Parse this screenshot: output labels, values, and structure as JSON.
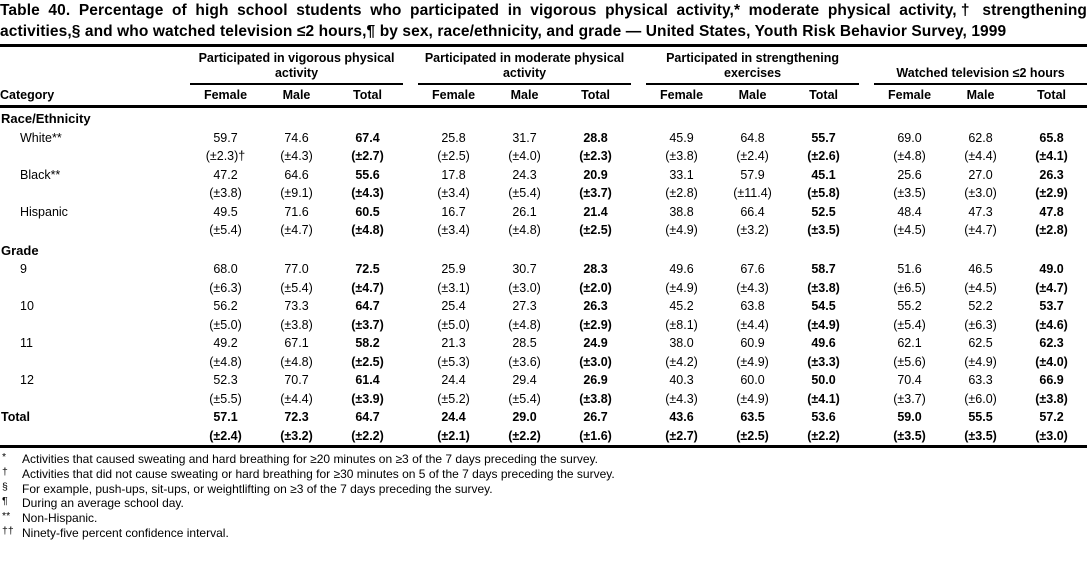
{
  "title": "Table 40. Percentage of high school students who participated in vigorous physical activity,* moderate physical activity,† strengthening activities,§ and who watched television ≤2 hours,¶ by sex, race/ethnicity, and grade — United States, Youth Risk Behavior Survey, 1999",
  "table": {
    "category_header": "Category",
    "groups": [
      {
        "label": "Participated in vigorous physical activity",
        "cols": [
          "Female",
          "Male",
          "Total"
        ]
      },
      {
        "label": "Participated in moderate physical activity",
        "cols": [
          "Female",
          "Male",
          "Total"
        ]
      },
      {
        "label": "Participated in strengthening exercises",
        "cols": [
          "Female",
          "Male",
          "Total"
        ]
      },
      {
        "label": "Watched television ≤2 hours",
        "cols": [
          "Female",
          "Male",
          "Total"
        ]
      }
    ],
    "sections": [
      {
        "heading": "Race/Ethnicity",
        "rows": [
          {
            "label": "White**",
            "values": [
              "59.7",
              "74.6",
              "67.4",
              "25.8",
              "31.7",
              "28.8",
              "45.9",
              "64.8",
              "55.7",
              "69.0",
              "62.8",
              "65.8"
            ],
            "ci": [
              "(±2.3)†",
              "(±4.3)",
              "(±2.7)",
              "(±2.5)",
              "(±4.0)",
              "(±2.3)",
              "(±3.8)",
              "(±2.4)",
              "(±2.6)",
              "(±4.8)",
              "(±4.4)",
              "(±4.1)"
            ]
          },
          {
            "label": "Black**",
            "values": [
              "47.2",
              "64.6",
              "55.6",
              "17.8",
              "24.3",
              "20.9",
              "33.1",
              "57.9",
              "45.1",
              "25.6",
              "27.0",
              "26.3"
            ],
            "ci": [
              "(±3.8)",
              "(±9.1)",
              "(±4.3)",
              "(±3.4)",
              "(±5.4)",
              "(±3.7)",
              "(±2.8)",
              "(±11.4)",
              "(±5.8)",
              "(±3.5)",
              "(±3.0)",
              "(±2.9)"
            ]
          },
          {
            "label": "Hispanic",
            "values": [
              "49.5",
              "71.6",
              "60.5",
              "16.7",
              "26.1",
              "21.4",
              "38.8",
              "66.4",
              "52.5",
              "48.4",
              "47.3",
              "47.8"
            ],
            "ci": [
              "(±5.4)",
              "(±4.7)",
              "(±4.8)",
              "(±3.4)",
              "(±4.8)",
              "(±2.5)",
              "(±4.9)",
              "(±3.2)",
              "(±3.5)",
              "(±4.5)",
              "(±4.7)",
              "(±2.8)"
            ]
          }
        ]
      },
      {
        "heading": "Grade",
        "rows": [
          {
            "label": "9",
            "values": [
              "68.0",
              "77.0",
              "72.5",
              "25.9",
              "30.7",
              "28.3",
              "49.6",
              "67.6",
              "58.7",
              "51.6",
              "46.5",
              "49.0"
            ],
            "ci": [
              "(±6.3)",
              "(±5.4)",
              "(±4.7)",
              "(±3.1)",
              "(±3.0)",
              "(±2.0)",
              "(±4.9)",
              "(±4.3)",
              "(±3.8)",
              "(±6.5)",
              "(±4.5)",
              "(±4.7)"
            ]
          },
          {
            "label": "10",
            "values": [
              "56.2",
              "73.3",
              "64.7",
              "25.4",
              "27.3",
              "26.3",
              "45.2",
              "63.8",
              "54.5",
              "55.2",
              "52.2",
              "53.7"
            ],
            "ci": [
              "(±5.0)",
              "(±3.8)",
              "(±3.7)",
              "(±5.0)",
              "(±4.8)",
              "(±2.9)",
              "(±8.1)",
              "(±4.4)",
              "(±4.9)",
              "(±5.4)",
              "(±6.3)",
              "(±4.6)"
            ]
          },
          {
            "label": "11",
            "values": [
              "49.2",
              "67.1",
              "58.2",
              "21.3",
              "28.5",
              "24.9",
              "38.0",
              "60.9",
              "49.6",
              "62.1",
              "62.5",
              "62.3"
            ],
            "ci": [
              "(±4.8)",
              "(±4.8)",
              "(±2.5)",
              "(±5.3)",
              "(±3.6)",
              "(±3.0)",
              "(±4.2)",
              "(±4.9)",
              "(±3.3)",
              "(±5.6)",
              "(±4.9)",
              "(±4.0)"
            ]
          },
          {
            "label": "12",
            "values": [
              "52.3",
              "70.7",
              "61.4",
              "24.4",
              "29.4",
              "26.9",
              "40.3",
              "60.0",
              "50.0",
              "70.4",
              "63.3",
              "66.9"
            ],
            "ci": [
              "(±5.5)",
              "(±4.4)",
              "(±3.9)",
              "(±5.2)",
              "(±5.4)",
              "(±3.8)",
              "(±4.3)",
              "(±4.9)",
              "(±4.1)",
              "(±3.7)",
              "(±6.0)",
              "(±3.8)"
            ]
          }
        ]
      },
      {
        "heading": "",
        "rows": [
          {
            "label": "Total",
            "bold": true,
            "flush": true,
            "values": [
              "57.1",
              "72.3",
              "64.7",
              "24.4",
              "29.0",
              "26.7",
              "43.6",
              "63.5",
              "53.6",
              "59.0",
              "55.5",
              "57.2"
            ],
            "ci": [
              "(±2.4)",
              "(±3.2)",
              "(±2.2)",
              "(±2.1)",
              "(±2.2)",
              "(±1.6)",
              "(±2.7)",
              "(±2.5)",
              "(±2.2)",
              "(±3.5)",
              "(±3.5)",
              "(±3.0)"
            ]
          }
        ]
      }
    ]
  },
  "footnotes": [
    {
      "marker": "*",
      "text": "Activities that caused sweating and hard breathing for ≥20 minutes on ≥3 of the 7 days preceding the survey."
    },
    {
      "marker": "†",
      "text": "Activities that did not cause sweating or hard breathing for ≥30 minutes on 5 of the 7 days preceding the survey."
    },
    {
      "marker": "§",
      "text": "For example, push-ups, sit-ups, or weightlifting on ≥3 of the 7 days preceding the survey."
    },
    {
      "marker": "¶",
      "text": "During an average school day."
    },
    {
      "marker": "**",
      "text": "Non-Hispanic."
    },
    {
      "marker": "††",
      "text": "Ninety-five percent confidence interval."
    }
  ]
}
